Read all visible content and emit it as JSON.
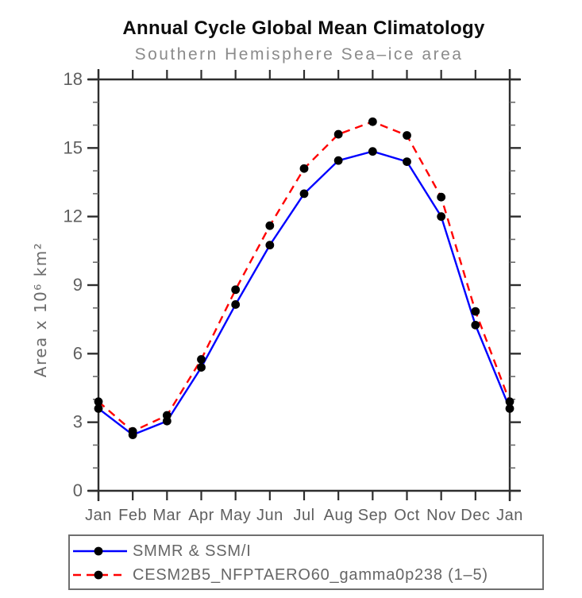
{
  "chart_data": {
    "type": "line",
    "title": "Annual Cycle Global Mean Climatology",
    "subtitle": "Southern Hemisphere Sea–ice area",
    "ylabel": "Area x 10⁶ km²",
    "xlabel": "",
    "categories": [
      "Jan",
      "Feb",
      "Mar",
      "Apr",
      "May",
      "Jun",
      "Jul",
      "Aug",
      "Sep",
      "Oct",
      "Nov",
      "Dec",
      "Jan"
    ],
    "ylim": [
      0,
      18
    ],
    "ytick_major_step": 3,
    "ytick_minor_step": 1,
    "grid": "off",
    "legend_position": "bottom",
    "marker_color": "#000000",
    "axis_color": "#2e2e2e",
    "series": [
      {
        "name": "SMMR & SSM/I",
        "color": "#0000ff",
        "style": "solid",
        "marker": "filled-circle",
        "values": [
          3.6,
          2.45,
          3.05,
          5.4,
          8.15,
          10.75,
          13.0,
          14.45,
          14.85,
          14.4,
          12.0,
          7.25,
          3.6
        ]
      },
      {
        "name": "CESM2B5_NFPTAERO60_gamma0p238 (1–5)",
        "color": "#ff0000",
        "style": "dashed",
        "marker": "filled-circle",
        "values": [
          3.9,
          2.6,
          3.3,
          5.75,
          8.8,
          11.6,
          14.1,
          15.6,
          16.15,
          15.55,
          12.85,
          7.85,
          3.9
        ]
      }
    ]
  }
}
